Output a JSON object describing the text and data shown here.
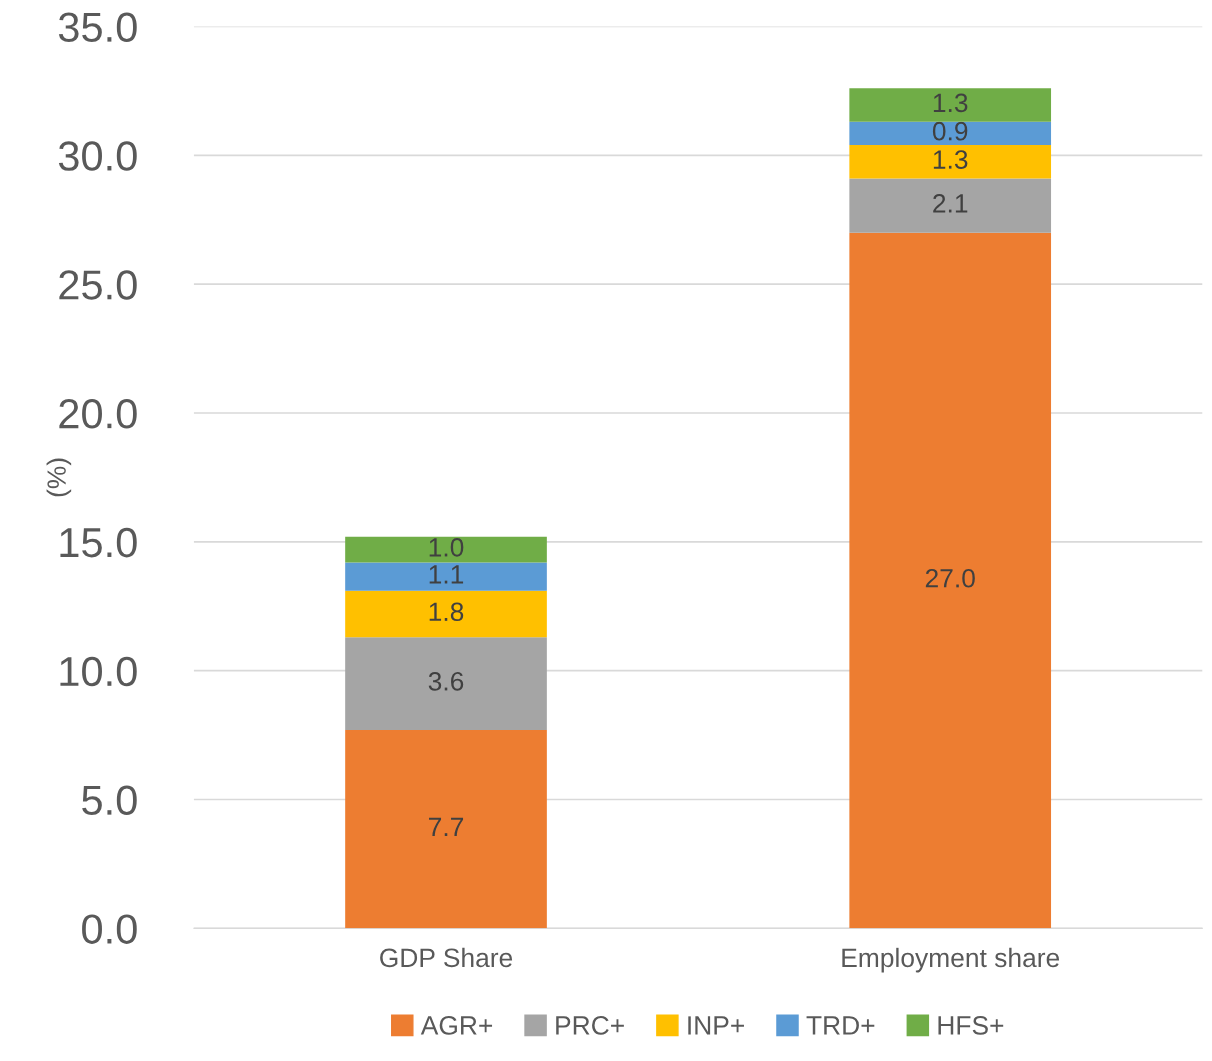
{
  "chart_data": {
    "type": "bar",
    "stacked": true,
    "ylabel": "(%)",
    "categories": [
      "GDP Share",
      "Employment share"
    ],
    "series": [
      {
        "name": "AGR+",
        "color": "#ed7d31",
        "values": [
          7.7,
          27
        ],
        "value_labels": [
          "7.7",
          "27.0"
        ]
      },
      {
        "name": "PRC+",
        "color": "#a5a5a5",
        "values": [
          3.6,
          2.1
        ],
        "value_labels": [
          "3.6",
          "2.1"
        ]
      },
      {
        "name": "INP+",
        "color": "#ffc000",
        "values": [
          1.8,
          1.3
        ],
        "value_labels": [
          "1.8",
          "1.3"
        ]
      },
      {
        "name": "TRD+",
        "color": "#5b9bd5",
        "values": [
          1.1,
          0.9
        ],
        "value_labels": [
          "1.1",
          "0.9"
        ]
      },
      {
        "name": "HFS+",
        "color": "#70ad47",
        "values": [
          1,
          1.3
        ],
        "value_labels": [
          "1.0",
          "1.3"
        ]
      }
    ],
    "ylim": [
      0,
      35
    ],
    "yticks": [
      {
        "value": 0,
        "label": "0.0"
      },
      {
        "value": 5,
        "label": "5.0"
      },
      {
        "value": 10,
        "label": "10.0"
      },
      {
        "value": 15,
        "label": "15.0"
      },
      {
        "value": 20,
        "label": "20.0"
      },
      {
        "value": 25,
        "label": "25.0"
      },
      {
        "value": 30,
        "label": "30.0"
      },
      {
        "value": 35,
        "label": "35.0"
      }
    ],
    "grid": "y",
    "legend": "bottom"
  }
}
